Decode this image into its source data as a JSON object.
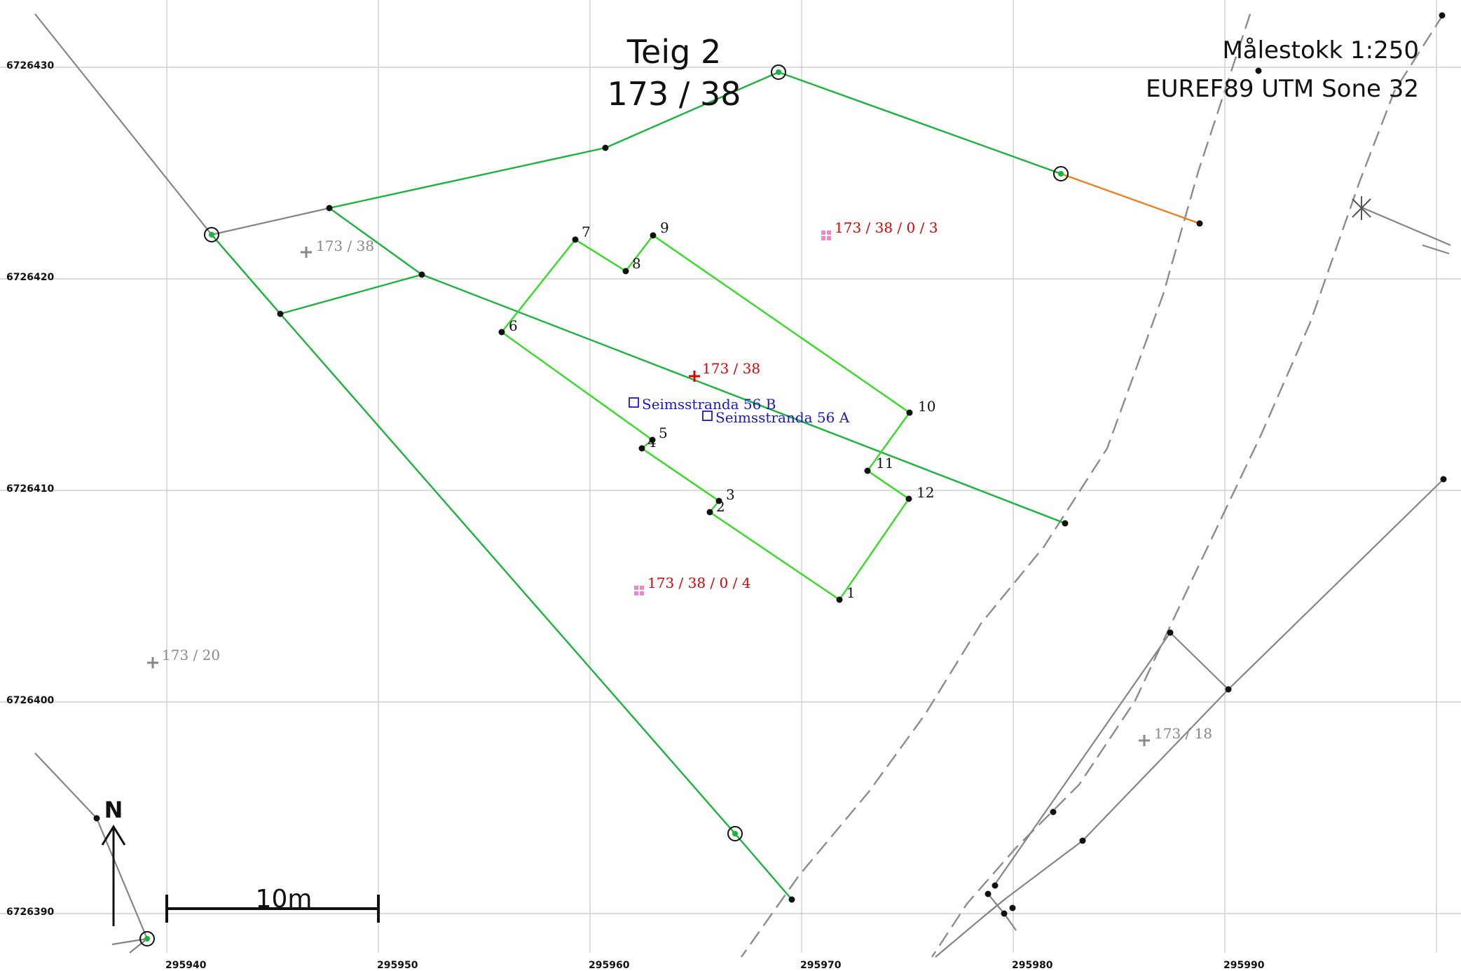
{
  "title": {
    "line1": "Teig 2",
    "line2": "173  /  38"
  },
  "scale_info": {
    "scale": "Målestokk 1:250",
    "crs": "EUREF89 UTM Sone 32"
  },
  "grid": {
    "x_labels": [
      "295940",
      "295950",
      "295960",
      "295970",
      "295980",
      "295990"
    ],
    "y_labels": [
      "6726430",
      "6726420",
      "6726410",
      "6726400",
      "6726390"
    ]
  },
  "parcel_labels": {
    "main_red": "173 / 38",
    "sub_3": "173 / 38 / 0 / 3",
    "sub_4": "173 / 38 / 0 / 4",
    "grey_173_38": "173 / 38",
    "grey_173_20": "173 / 20",
    "grey_173_18": "173 / 18"
  },
  "addresses": {
    "a": "Seimsstranda 56 A",
    "b": "Seimsstranda 56 B"
  },
  "point_numbers": [
    "1",
    "2",
    "3",
    "4",
    "5",
    "6",
    "7",
    "8",
    "9",
    "10",
    "11",
    "12"
  ],
  "scale_bar": {
    "label": "10m"
  },
  "north_arrow": {
    "label": "N"
  },
  "colors": {
    "boundary_green": "#19b43c",
    "building_green": "#33dd22",
    "orange_line": "#f07f1e",
    "grey_line": "#858585",
    "grid": "#c8c8c8",
    "red_label": "#e00000",
    "pink_marker": "#ee88cc",
    "address_blue": "#1818cc",
    "grey_label": "#888888"
  }
}
